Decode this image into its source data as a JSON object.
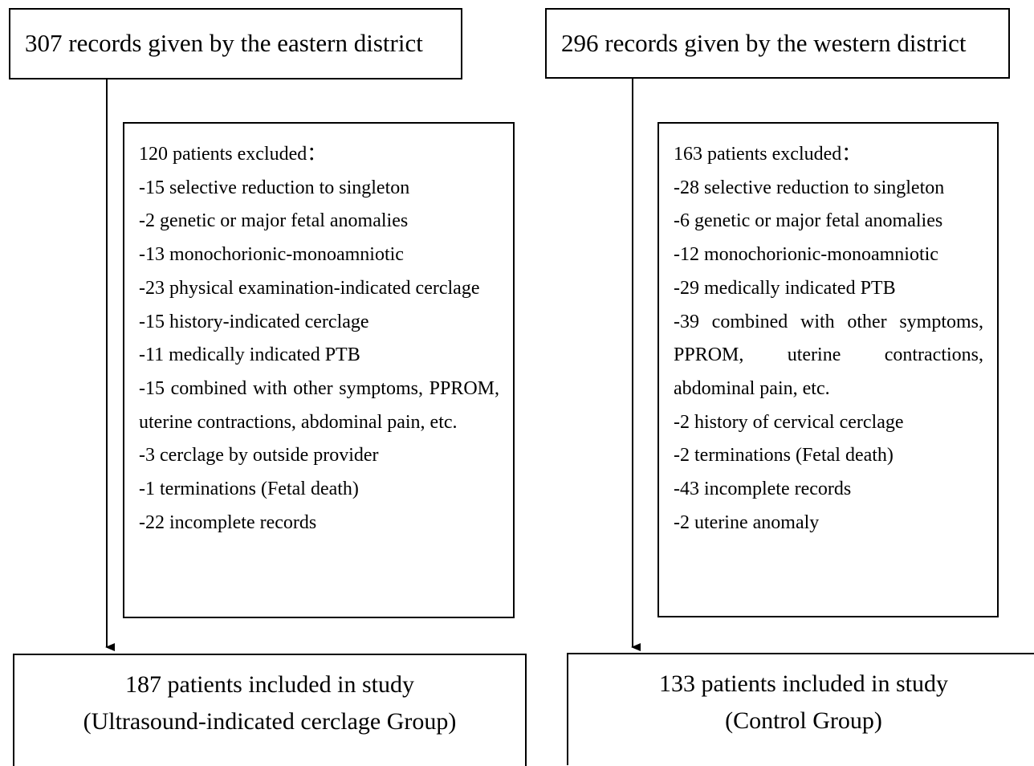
{
  "left": {
    "source": "307 records given by the eastern district",
    "excluded": {
      "title": "120 patients excluded：",
      "items": [
        "-15 selective reduction to singleton",
        "-2 genetic or major fetal anomalies",
        "-13 monochorionic-monoamniotic",
        "-23 physical examination-indicated cerclage",
        "-15 history-indicated cerclage",
        "-11 medically indicated PTB",
        "-15 combined with other symptoms, PPROM, uterine contractions, abdominal pain, etc.",
        "-3 cerclage by outside provider",
        "-1 terminations (Fetal death)",
        "-22 incomplete records"
      ]
    },
    "included": [
      "187 patients included in study",
      "(Ultrasound-indicated cerclage Group)"
    ]
  },
  "right": {
    "source": "296 records given by the western district",
    "excluded": {
      "title": "163 patients excluded：",
      "items": [
        "-28 selective reduction to singleton",
        "-6 genetic or major fetal anomalies",
        "-12 monochorionic-monoamniotic",
        "-29 medically indicated PTB",
        "-39 combined with other symptoms, PPROM, uterine contractions, abdominal pain, etc.",
        "-2 history of cervical cerclage",
        "-2 terminations (Fetal death)",
        "-43 incomplete records",
        "-2 uterine anomaly"
      ]
    },
    "included": [
      "133 patients included in study",
      "(Control Group)"
    ]
  }
}
